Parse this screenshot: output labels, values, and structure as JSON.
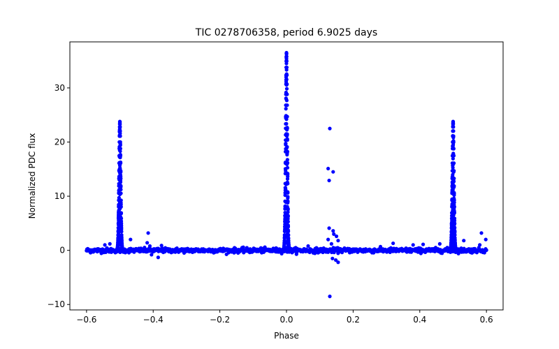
{
  "chart_data": {
    "type": "scatter",
    "title": "TIC 0278706358, period 6.9025 days",
    "xlabel": "Phase",
    "ylabel": "Normalized PDC flux",
    "xlim": [
      -0.65,
      0.65
    ],
    "ylim": [
      -11.0,
      38.5
    ],
    "xticks": [
      -0.6,
      -0.4,
      -0.2,
      0.0,
      0.2,
      0.4,
      0.6
    ],
    "xtick_labels": [
      "−0.6",
      "−0.4",
      "−0.2",
      "0.0",
      "0.2",
      "0.4",
      "0.6"
    ],
    "yticks": [
      -10,
      0,
      10,
      20,
      30
    ],
    "ytick_labels": [
      "−10",
      "0",
      "10",
      "20",
      "30"
    ],
    "grid": false,
    "marker_color": "#0000ff",
    "series": [
      {
        "name": "PDC flux",
        "baseline": {
          "x_start": -0.6,
          "x_end": 0.6,
          "y": 0.0,
          "scatter": 0.6
        },
        "flares": [
          {
            "center": -0.5,
            "peak": 23.8,
            "width": 0.008
          },
          {
            "center": 0.0,
            "peak": 36.5,
            "width": 0.008
          },
          {
            "center": 0.5,
            "peak": 23.8,
            "width": 0.008
          }
        ],
        "outliers": [
          {
            "x": 0.13,
            "y": 22.5
          },
          {
            "x": 0.125,
            "y": 15.1
          },
          {
            "x": 0.14,
            "y": 14.5
          },
          {
            "x": 0.128,
            "y": 12.9
          },
          {
            "x": 0.128,
            "y": 4.1
          },
          {
            "x": 0.14,
            "y": 3.6
          },
          {
            "x": 0.142,
            "y": 3.0
          },
          {
            "x": 0.15,
            "y": 2.6
          },
          {
            "x": 0.125,
            "y": 2.0
          },
          {
            "x": 0.155,
            "y": 1.8
          },
          {
            "x": 0.135,
            "y": 1.2
          },
          {
            "x": 0.138,
            "y": -1.5
          },
          {
            "x": 0.148,
            "y": -1.8
          },
          {
            "x": 0.155,
            "y": -2.2
          },
          {
            "x": 0.13,
            "y": -8.5
          },
          {
            "x": -0.415,
            "y": 3.2
          },
          {
            "x": -0.418,
            "y": 1.4
          },
          {
            "x": -0.405,
            "y": -0.8
          },
          {
            "x": -0.385,
            "y": -1.3
          },
          {
            "x": -0.468,
            "y": 2.0
          },
          {
            "x": -0.53,
            "y": 1.2
          },
          {
            "x": -0.545,
            "y": 1.0
          },
          {
            "x": -0.41,
            "y": 0.8
          },
          {
            "x": -0.375,
            "y": 0.9
          },
          {
            "x": 0.065,
            "y": 0.8
          },
          {
            "x": 0.32,
            "y": 1.3
          },
          {
            "x": 0.38,
            "y": 1.0
          },
          {
            "x": 0.41,
            "y": 1.1
          },
          {
            "x": 0.46,
            "y": 1.2
          },
          {
            "x": 0.532,
            "y": 1.8
          },
          {
            "x": 0.585,
            "y": 3.2
          },
          {
            "x": 0.598,
            "y": 2.0
          },
          {
            "x": 0.58,
            "y": 1.0
          }
        ]
      }
    ]
  }
}
